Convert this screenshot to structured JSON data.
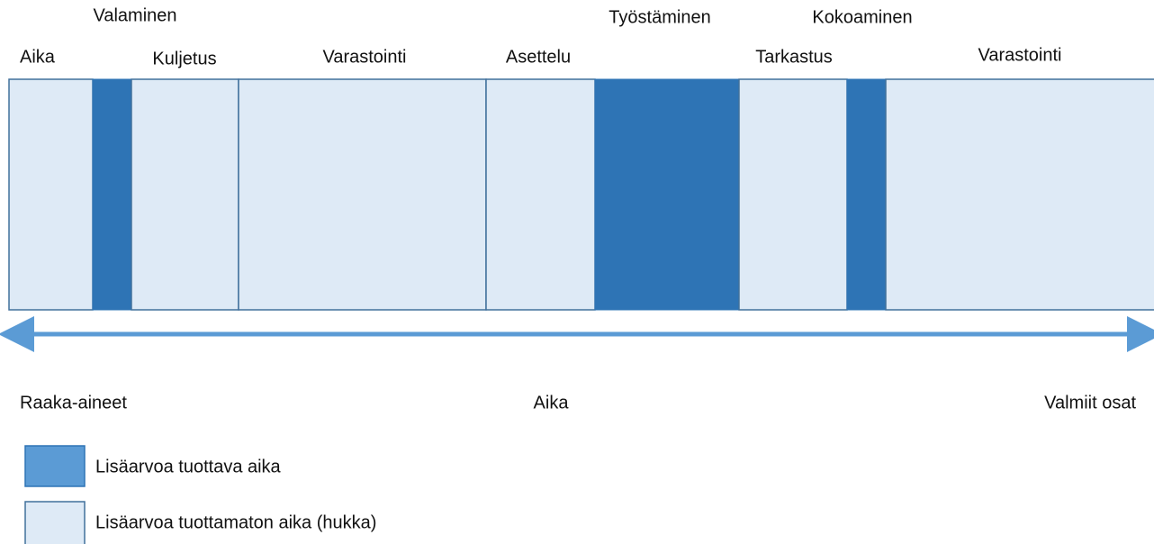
{
  "steps": [
    {
      "label": "Aika"
    },
    {
      "label": "Valaminen"
    },
    {
      "label": "Kuljetus"
    },
    {
      "label": "Varastointi"
    },
    {
      "label": "Asettelu"
    },
    {
      "label": "Työstäminen"
    },
    {
      "label": "Tarkastus"
    },
    {
      "label": "Kokoaminen"
    },
    {
      "label": "Varastointi"
    }
  ],
  "axis": {
    "start": "Raaka-aineet",
    "middle": "Aika",
    "end": "Valmiit osat"
  },
  "legend": [
    {
      "label": "Lisäarvoa tuottava aika"
    },
    {
      "label": "Lisäarvoa tuottamaton aika (hukka)"
    }
  ]
}
